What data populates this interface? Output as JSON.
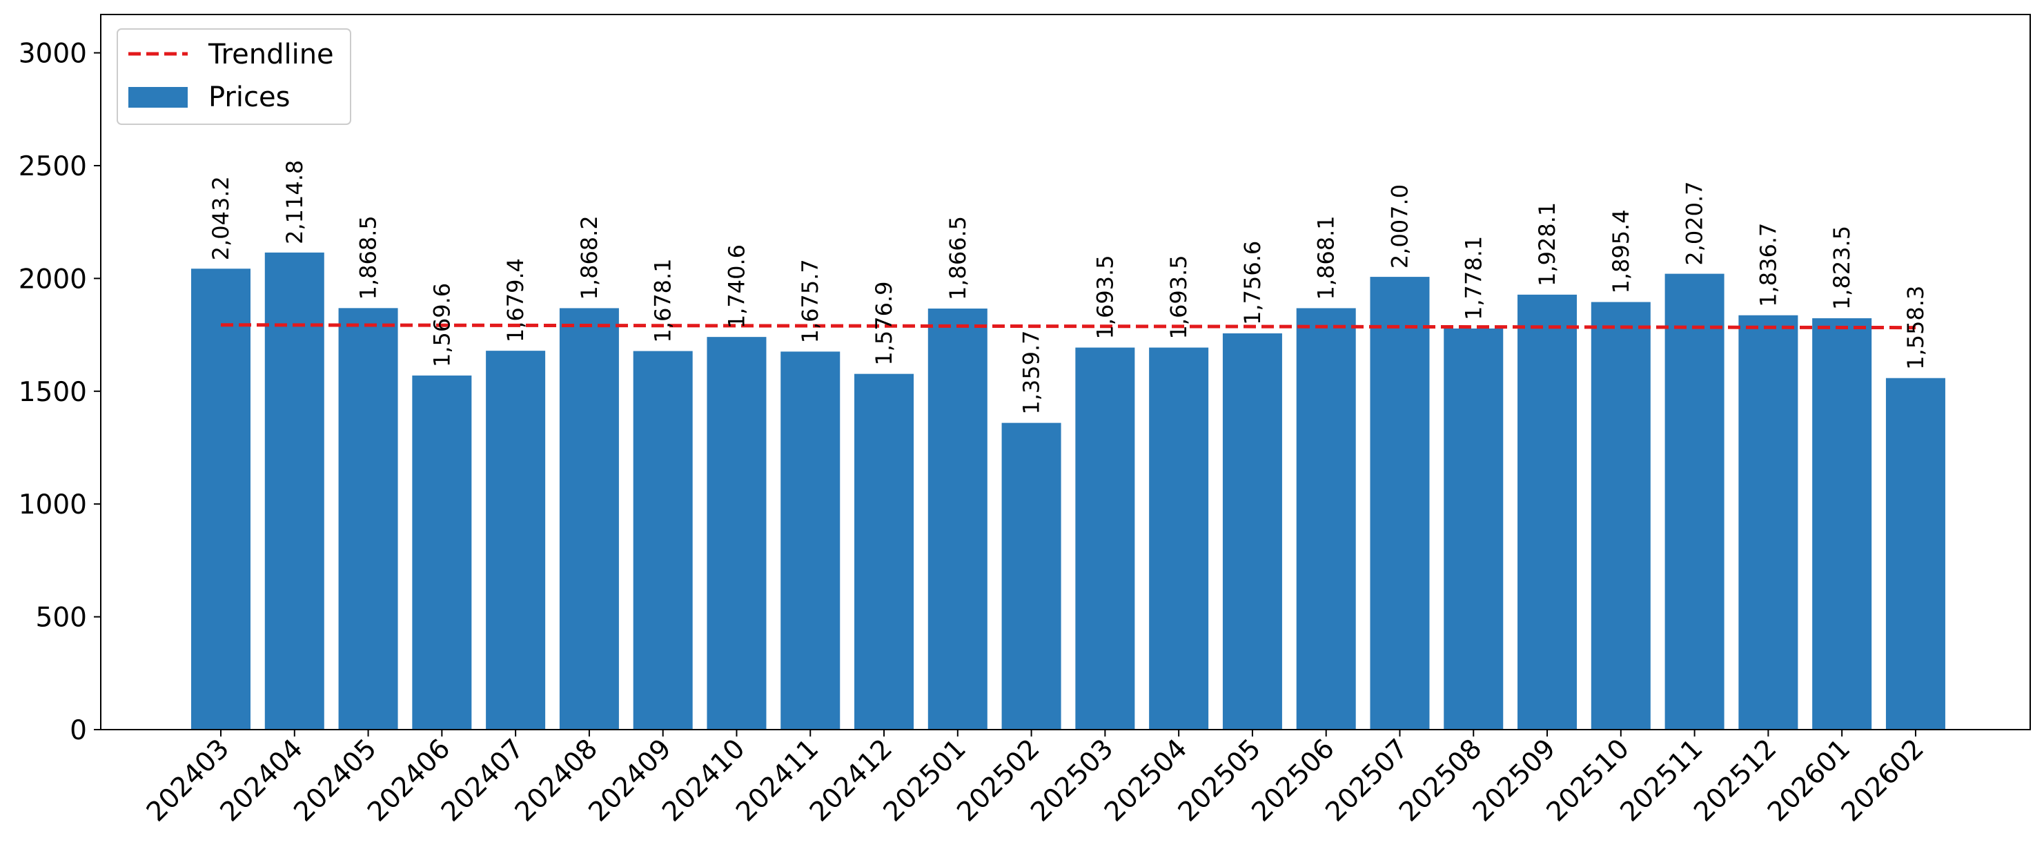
{
  "chart_data": {
    "type": "bar",
    "title": "",
    "xlabel": "",
    "ylabel": "",
    "ylim": [
      0,
      3170
    ],
    "yticks": [
      0,
      500,
      1000,
      1500,
      2000,
      2500,
      3000
    ],
    "grid": false,
    "legend_position": "top-left",
    "categories": [
      "202403",
      "202404",
      "202405",
      "202406",
      "202407",
      "202408",
      "202409",
      "202410",
      "202411",
      "202412",
      "202501",
      "202502",
      "202503",
      "202504",
      "202505",
      "202506",
      "202507",
      "202508",
      "202509",
      "202510",
      "202511",
      "202512",
      "202601",
      "202602"
    ],
    "series": [
      {
        "name": "Prices",
        "type": "bar",
        "color": "#2b7bba",
        "values": [
          2043.2,
          2114.8,
          1868.5,
          1569.6,
          1679.4,
          1868.2,
          1678.1,
          1740.6,
          1675.7,
          1576.9,
          1866.5,
          1359.7,
          1693.5,
          1693.5,
          1756.6,
          1868.1,
          2007.0,
          1778.1,
          1928.1,
          1895.4,
          2020.7,
          1836.7,
          1823.5,
          1558.3
        ],
        "labels": [
          "2,043.2",
          "2,114.8",
          "1,868.5",
          "1,569.6",
          "1,679.4",
          "1,868.2",
          "1,678.1",
          "1,740.6",
          "1,675.7",
          "1,576.9",
          "1,866.5",
          "1,359.7",
          "1,693.5",
          "1,693.5",
          "1,756.6",
          "1,868.1",
          "2,007.0",
          "1,778.1",
          "1,928.1",
          "1,895.4",
          "2,020.7",
          "1,836.7",
          "1,823.5",
          "1,558.3"
        ]
      },
      {
        "name": "Trendline",
        "type": "line",
        "style": "dashed",
        "color": "#e31a1c",
        "start": 1794,
        "end": 1782
      }
    ]
  }
}
